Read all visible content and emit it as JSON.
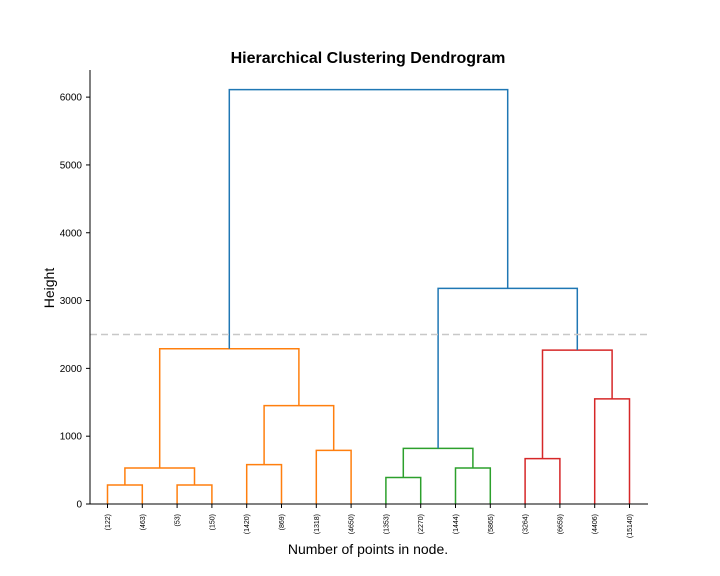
{
  "chart_data": {
    "type": "dendrogram",
    "title": "Hierarchical Clustering Dendrogram",
    "xlabel": "Number of points in node.",
    "ylabel": "Height",
    "ylim": [
      0,
      6400
    ],
    "yticks": [
      0,
      1000,
      2000,
      3000,
      4000,
      5000,
      6000
    ],
    "cut_line": {
      "height": 2500,
      "color": "#c8c8c8"
    },
    "grid": false,
    "leaves": [
      "(122)",
      "(463)",
      "(53)",
      "(150)",
      "(1420)",
      "(869)",
      "(1318)",
      "(4650)",
      "(1353)",
      "(2270)",
      "(1444)",
      "(5865)",
      "(3264)",
      "(6659)",
      "(4406)",
      "(15140)"
    ],
    "merges": [
      {
        "left": "L0",
        "right": "L1",
        "height": 280,
        "color": "#ff7f0e"
      },
      {
        "left": "L2",
        "right": "L3",
        "height": 280,
        "color": "#ff7f0e"
      },
      {
        "left": "M0",
        "right": "M1",
        "height": 530,
        "color": "#ff7f0e"
      },
      {
        "left": "L4",
        "right": "L5",
        "height": 580,
        "color": "#ff7f0e"
      },
      {
        "left": "L6",
        "right": "L7",
        "height": 790,
        "color": "#ff7f0e"
      },
      {
        "left": "M3",
        "right": "M4",
        "height": 1450,
        "color": "#ff7f0e"
      },
      {
        "left": "M2",
        "right": "M5",
        "height": 2290,
        "color": "#ff7f0e"
      },
      {
        "left": "L8",
        "right": "L9",
        "height": 390,
        "color": "#2ca02c"
      },
      {
        "left": "L10",
        "right": "L11",
        "height": 530,
        "color": "#2ca02c"
      },
      {
        "left": "M7",
        "right": "M8",
        "height": 820,
        "color": "#2ca02c"
      },
      {
        "left": "L12",
        "right": "L13",
        "height": 670,
        "color": "#d62728"
      },
      {
        "left": "L14",
        "right": "L15",
        "height": 1550,
        "color": "#d62728"
      },
      {
        "left": "M10",
        "right": "M11",
        "height": 2270,
        "color": "#d62728"
      },
      {
        "left": "M9",
        "right": "M12",
        "height": 3180,
        "color": "#1f77b4"
      },
      {
        "left": "M6",
        "right": "M13",
        "height": 6110,
        "color": "#1f77b4"
      }
    ]
  }
}
